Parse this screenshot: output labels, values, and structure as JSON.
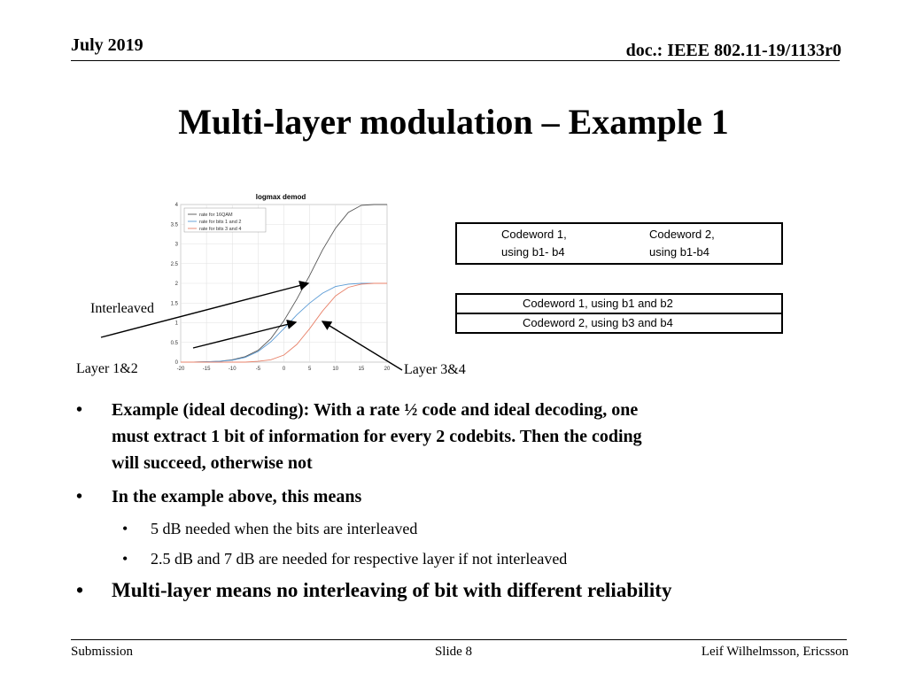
{
  "header": {
    "date": "July 2019",
    "doc": "doc.: IEEE 802.11-19/1133r0"
  },
  "title": "Multi-layer modulation – Example 1",
  "chart_data": {
    "type": "line",
    "title": "logmax demod",
    "xlabel": "",
    "ylabel": "",
    "xlim": [
      -20,
      20
    ],
    "ylim": [
      0,
      4
    ],
    "x_ticks": [
      "-20",
      "-15",
      "-10",
      "-5",
      "0",
      "5",
      "10",
      "15",
      "20"
    ],
    "y_ticks": [
      "0",
      "0.5",
      "1",
      "1.5",
      "2",
      "2.5",
      "3",
      "3.5",
      "4"
    ],
    "legend": "top-left",
    "grid": true,
    "x": [
      -20,
      -17.5,
      -15,
      -12.5,
      -10,
      -7.5,
      -5,
      -2.5,
      0,
      2.5,
      5,
      7.5,
      10,
      12.5,
      15,
      17.5,
      20
    ],
    "series": [
      {
        "name": "rate for 16QAM",
        "color": "#555555",
        "values": [
          0.0,
          0.0,
          0.01,
          0.02,
          0.06,
          0.14,
          0.3,
          0.6,
          1.05,
          1.6,
          2.2,
          2.85,
          3.4,
          3.8,
          3.98,
          4.0,
          4.0
        ]
      },
      {
        "name": "rate for bits 1 and 2",
        "color": "#5b9bd5",
        "values": [
          0.0,
          0.0,
          0.01,
          0.02,
          0.05,
          0.12,
          0.27,
          0.52,
          0.85,
          1.2,
          1.5,
          1.75,
          1.92,
          1.98,
          2.0,
          2.0,
          2.0
        ]
      },
      {
        "name": "rate for bits 3 and 4",
        "color": "#e8826a",
        "values": [
          0.0,
          0.0,
          0.0,
          0.0,
          0.0,
          0.0,
          0.02,
          0.06,
          0.18,
          0.45,
          0.85,
          1.3,
          1.68,
          1.9,
          1.98,
          2.0,
          2.0
        ]
      }
    ]
  },
  "labels": {
    "interleaved": "Interleaved",
    "layer12": "Layer 1&2",
    "layer34": "Layer 3&4"
  },
  "codewords_separate": {
    "left_l1": "Codeword 1,",
    "left_l2": "using b1- b4",
    "right_l1": "Codeword 2,",
    "right_l2": "using b1-b4"
  },
  "codewords_layered": {
    "row1": "Codeword 1, using b1 and b2",
    "row2": "Codeword 2, using b3 and b4"
  },
  "bullets": {
    "b1_l1": "Example (ideal decoding): With a rate ½ code and ideal decoding, one",
    "b1_l2": "must extract 1 bit of information for every 2 codebits. Then the coding",
    "b1_l3": "will succeed, otherwise not",
    "b2": "In the example above, this means",
    "b2_sub1": "5 dB needed when the bits are interleaved",
    "b2_sub2": "2.5 dB and 7 dB are needed for respective layer if not interleaved",
    "b3": "Multi-layer means no interleaving of bit with different reliability"
  },
  "footer": {
    "left": "Submission",
    "center": "Slide 8",
    "right": "Leif Wilhelmsson, Ericsson"
  }
}
